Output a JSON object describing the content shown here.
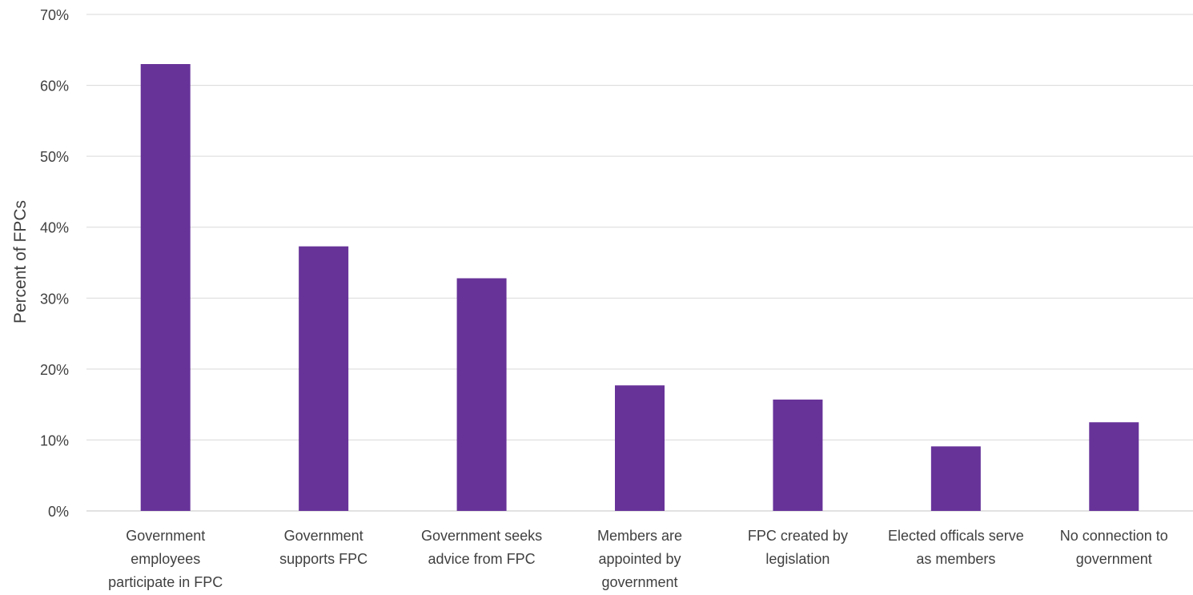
{
  "chart_data": {
    "type": "bar",
    "title": "",
    "xlabel": "",
    "ylabel": "Percent of FPCs",
    "ylim": [
      0,
      70
    ],
    "yticks": [
      0,
      10,
      20,
      30,
      40,
      50,
      60,
      70
    ],
    "ytick_suffix": "%",
    "grid": true,
    "legend": "none",
    "bar_color": "#673399",
    "grid_color": "#d9d9d9",
    "text_color": "#404040",
    "categories": [
      [
        "Government",
        "employees",
        "participate in FPC"
      ],
      [
        "Government",
        "supports FPC"
      ],
      [
        "Government seeks",
        "advice from FPC"
      ],
      [
        "Members are",
        "appointed by",
        "government"
      ],
      [
        "FPC created by",
        "legislation"
      ],
      [
        "Elected officals serve",
        "as members"
      ],
      [
        "No connection to",
        "government"
      ]
    ],
    "values": [
      63.0,
      37.3,
      32.8,
      17.7,
      15.7,
      9.1,
      12.5
    ]
  }
}
